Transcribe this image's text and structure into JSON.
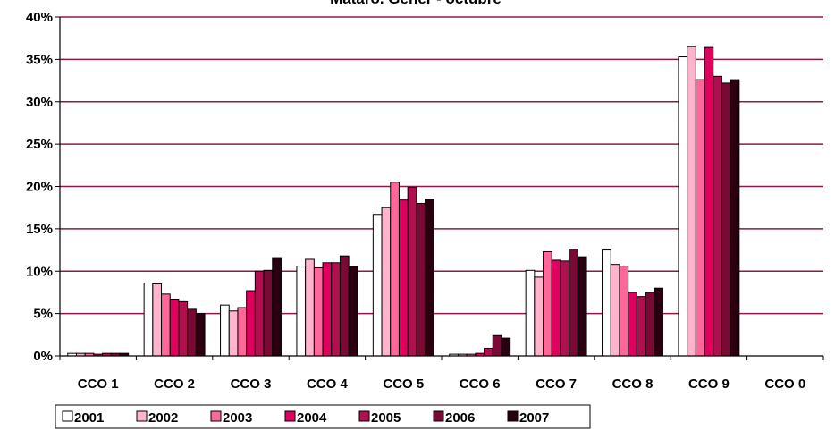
{
  "chart_data": {
    "type": "bar",
    "title": "Mataró. Gener - octubre",
    "categories": [
      "CCO 1",
      "CCO 2",
      "CCO 3",
      "CCO 4",
      "CCO 5",
      "CCO 6",
      "CCO 7",
      "CCO 8",
      "CCO 9",
      "CCO 0"
    ],
    "ylim": [
      0,
      40
    ],
    "yticks": [
      "0%",
      "5%",
      "10%",
      "15%",
      "20%",
      "25%",
      "30%",
      "35%",
      "40%"
    ],
    "grid": true,
    "legend_position": "bottom-left",
    "series": [
      {
        "name": "2001",
        "color": "#ffffff",
        "values": [
          0.3,
          8.6,
          6.0,
          10.6,
          16.7,
          0.2,
          10.1,
          12.5,
          35.3,
          0.0
        ]
      },
      {
        "name": "2002",
        "color": "#ffb3cc",
        "values": [
          0.3,
          8.5,
          5.3,
          11.4,
          17.5,
          0.2,
          9.3,
          10.8,
          36.5,
          0.0
        ]
      },
      {
        "name": "2003",
        "color": "#ff6699",
        "values": [
          0.3,
          7.3,
          5.7,
          10.4,
          20.5,
          0.2,
          12.3,
          10.6,
          32.6,
          0.0
        ]
      },
      {
        "name": "2004",
        "color": "#e00060",
        "values": [
          0.2,
          6.7,
          7.7,
          11.0,
          18.4,
          0.3,
          11.3,
          7.5,
          36.4,
          0.0
        ]
      },
      {
        "name": "2005",
        "color": "#b0104f",
        "values": [
          0.3,
          6.4,
          10.0,
          11.0,
          19.9,
          0.9,
          11.2,
          7.0,
          33.0,
          0.0
        ]
      },
      {
        "name": "2006",
        "color": "#7a0a35",
        "values": [
          0.3,
          5.5,
          10.1,
          11.8,
          18.0,
          2.4,
          12.6,
          7.5,
          32.2,
          0.0
        ]
      },
      {
        "name": "2007",
        "color": "#2a0010",
        "values": [
          0.3,
          5.0,
          11.6,
          10.6,
          18.5,
          2.1,
          11.7,
          8.0,
          32.6,
          0.0
        ]
      }
    ]
  },
  "colors": {
    "gridline": "#8b1a4a",
    "axis": "#000000"
  }
}
